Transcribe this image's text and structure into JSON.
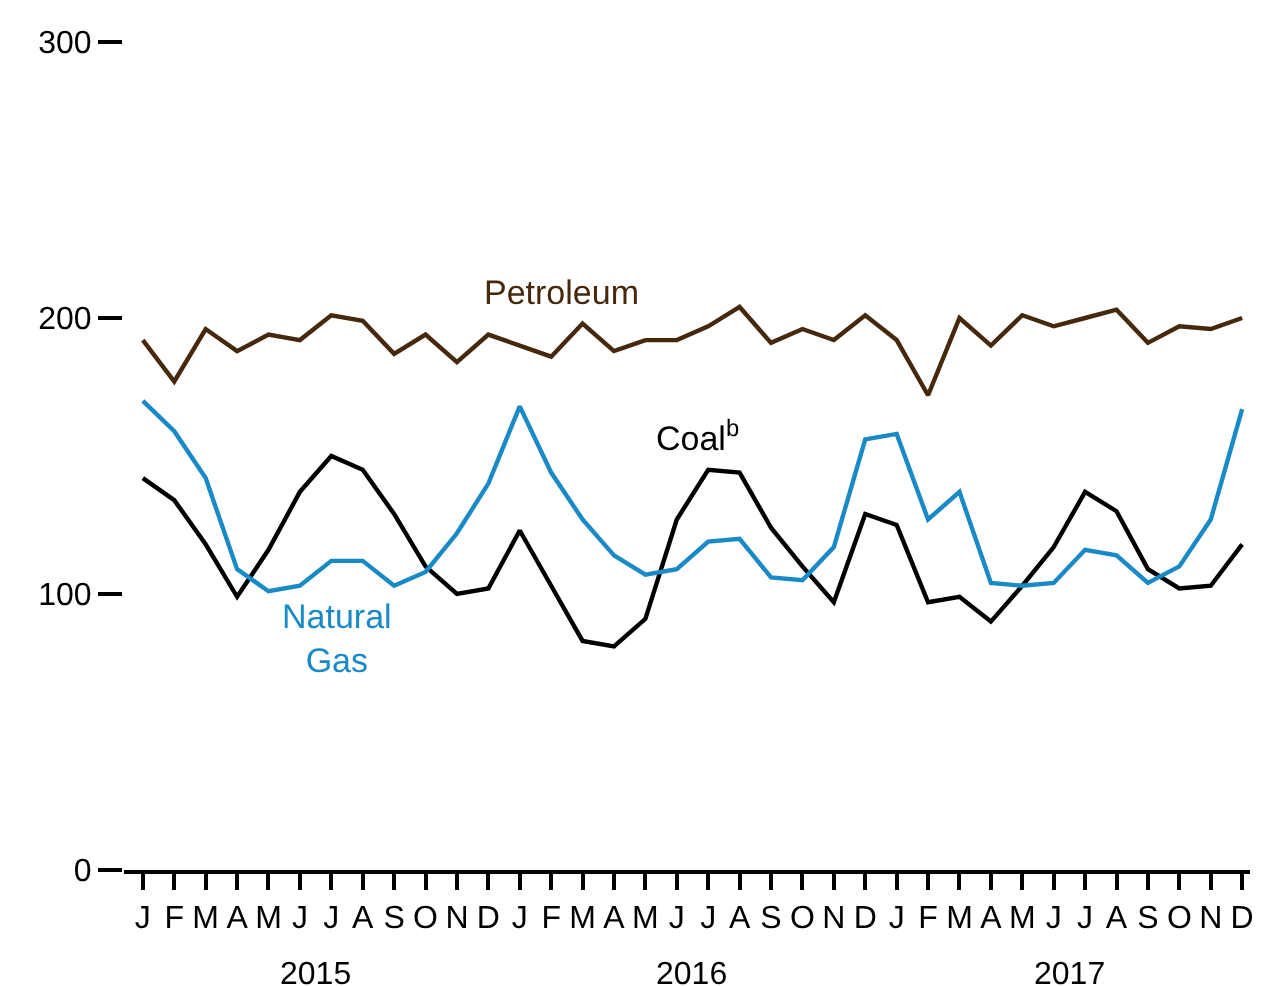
{
  "chart_data": {
    "type": "line",
    "categories": [
      "J",
      "F",
      "M",
      "A",
      "M",
      "J",
      "J",
      "A",
      "S",
      "O",
      "N",
      "D",
      "J",
      "F",
      "M",
      "A",
      "M",
      "J",
      "J",
      "A",
      "S",
      "O",
      "N",
      "D",
      "J",
      "F",
      "M",
      "A",
      "M",
      "J",
      "J",
      "A",
      "S",
      "O",
      "N",
      "D"
    ],
    "series": [
      {
        "name": "Petroleum",
        "color": "#46290c",
        "values": [
          192,
          177,
          196,
          188,
          194,
          192,
          201,
          199,
          187,
          194,
          184,
          194,
          190,
          186,
          198,
          188,
          192,
          192,
          197,
          204,
          191,
          196,
          192,
          201,
          192,
          172,
          200,
          190,
          201,
          197,
          200,
          203,
          191,
          197,
          196,
          200
        ]
      },
      {
        "name": "Coal$^{b}$",
        "color": "#000000",
        "values": [
          142,
          134,
          118,
          99,
          116,
          137,
          150,
          145,
          129,
          110,
          100,
          102,
          123,
          103,
          83,
          81,
          91,
          127,
          145,
          144,
          124,
          110,
          97,
          129,
          125,
          97,
          99,
          90,
          103,
          117,
          137,
          130,
          109,
          102,
          103,
          118
        ]
      },
      {
        "name": "Natural Gas",
        "color": "#1a8ac6",
        "values": [
          170,
          159,
          142,
          109,
          101,
          103,
          112,
          112,
          103,
          108,
          122,
          140,
          168,
          144,
          127,
          114,
          107,
          109,
          119,
          120,
          106,
          105,
          117,
          156,
          158,
          127,
          137,
          104,
          103,
          104,
          116,
          114,
          104,
          110,
          127,
          167
        ]
      }
    ],
    "annotations": [
      "2015",
      "2016",
      "2017"
    ],
    "ylim": [
      0,
      300
    ],
    "yticks": [
      0,
      100,
      200,
      300
    ],
    "grid": false,
    "legend": false,
    "marker": "none",
    "line_style": "solid"
  }
}
